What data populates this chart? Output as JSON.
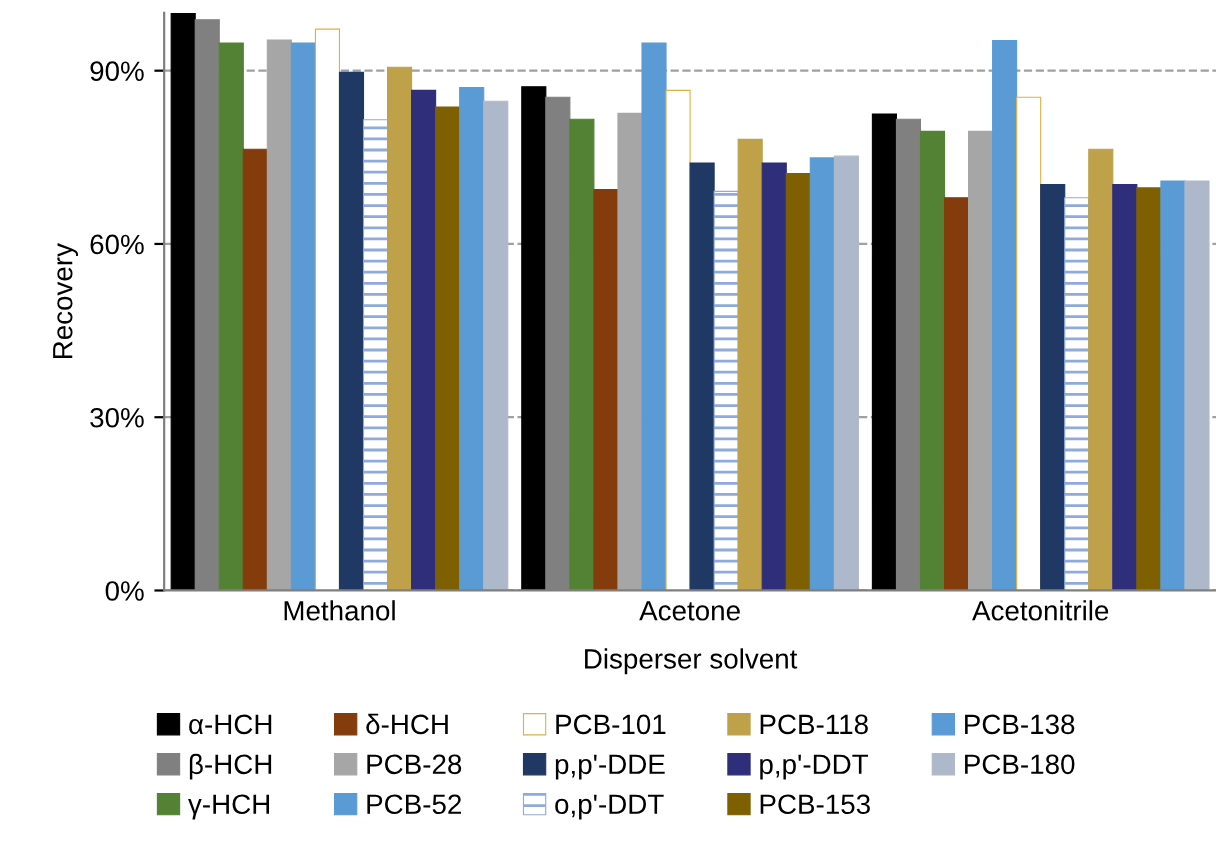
{
  "chart_data": {
    "type": "bar",
    "xlabel": "Disperser solvent",
    "ylabel": "Recovery",
    "categories": [
      "Methanol",
      "Acetone",
      "Acetonitrile"
    ],
    "ylim": [
      0,
      100
    ],
    "yticks": [
      {
        "value": 0,
        "label": "0%"
      },
      {
        "value": 30,
        "label": "30%"
      },
      {
        "value": 60,
        "label": "60%"
      },
      {
        "value": 90,
        "label": "90%"
      }
    ],
    "grid": "y",
    "legend": "bottom",
    "series": [
      {
        "name": "α-HCH",
        "color": "#000000",
        "values": [
          100.0,
          87.2,
          82.5
        ]
      },
      {
        "name": "β-HCH",
        "color": "#808080",
        "values": [
          98.8,
          85.4,
          81.6
        ]
      },
      {
        "name": "γ-HCH",
        "color": "#548235",
        "values": [
          94.8,
          81.6,
          79.5
        ]
      },
      {
        "name": "δ-HCH",
        "color": "#843c0c",
        "values": [
          76.4,
          69.4,
          68.0
        ]
      },
      {
        "name": "PCB-28",
        "color": "#a6a6a6",
        "values": [
          95.3,
          82.6,
          79.5
        ]
      },
      {
        "name": "PCB-52",
        "color": "#5b9bd5",
        "values": [
          94.8,
          94.8,
          95.2
        ]
      },
      {
        "name": "PCB-101",
        "color": "#e0b040",
        "values": [
          97.2,
          86.6,
          85.4
        ]
      },
      {
        "name": "p,p'-DDE",
        "color": "#1f3864",
        "values": [
          89.7,
          74.0,
          70.3
        ]
      },
      {
        "name": "o,p'-DDT",
        "color": "#8faadc",
        "values": [
          81.5,
          69.1,
          68.0
        ]
      },
      {
        "name": "PCB-118",
        "color": "#bfa14a",
        "values": [
          90.6,
          78.1,
          76.4
        ]
      },
      {
        "name": "p,p'-DDT",
        "color": "#2e2e7a",
        "values": [
          86.6,
          74.0,
          70.3
        ]
      },
      {
        "name": "PCB-153",
        "color": "#7f6000",
        "values": [
          83.7,
          72.2,
          69.7
        ]
      },
      {
        "name": "PCB-138",
        "color": "#5b9bd5",
        "values": [
          87.1,
          74.9,
          70.9
        ]
      },
      {
        "name": "PCB-180",
        "color": "#adb9ca",
        "values": [
          84.7,
          75.2,
          70.9
        ]
      }
    ]
  }
}
